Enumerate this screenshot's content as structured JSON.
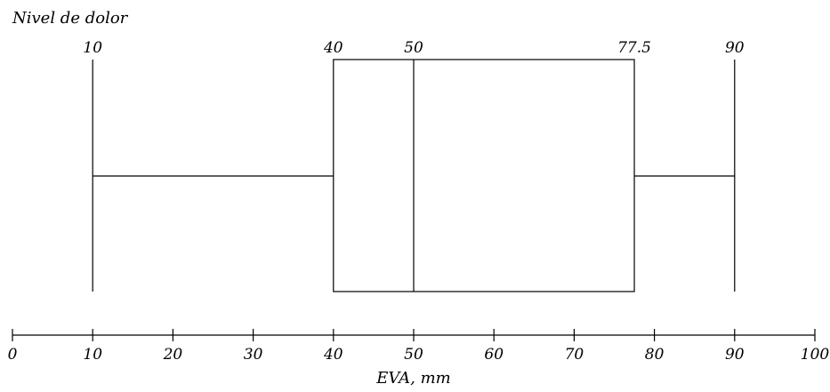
{
  "chart_data": {
    "type": "boxplot",
    "title": "Nivel de dolor",
    "xlabel": "EVA, mm",
    "xlim": [
      0,
      100
    ],
    "x_ticks": [
      0,
      10,
      20,
      30,
      40,
      50,
      60,
      70,
      80,
      90,
      100
    ],
    "box": {
      "min": 10,
      "q1": 40,
      "median": 50,
      "q3": 77.5,
      "max": 90
    },
    "box_labels": [
      "10",
      "40",
      "50",
      "77.5",
      "90"
    ],
    "grid": false,
    "orientation": "horizontal"
  }
}
